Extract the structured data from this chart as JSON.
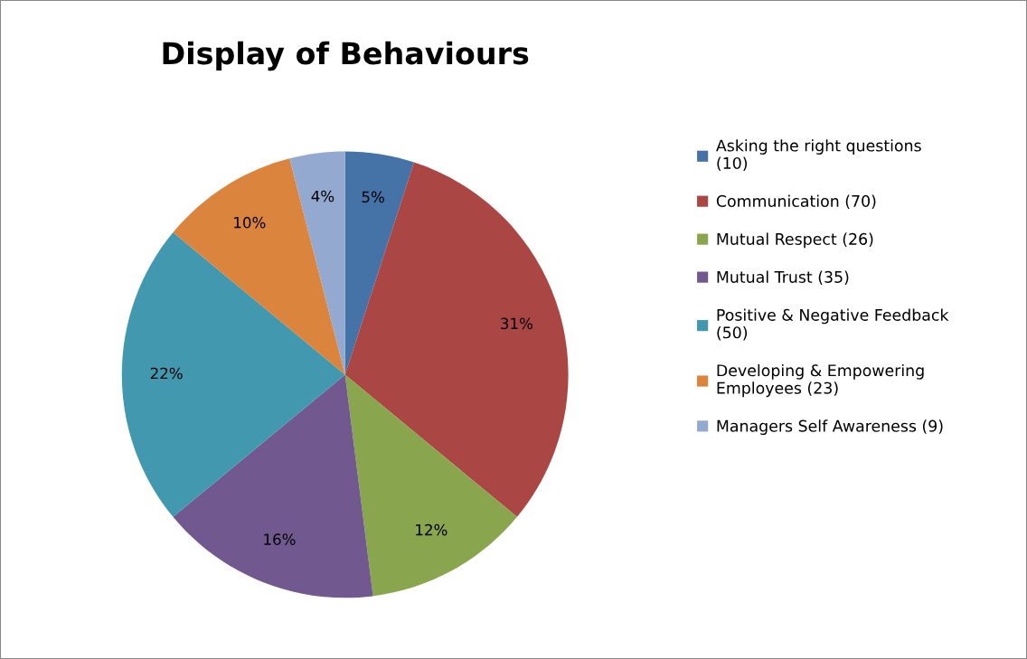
{
  "chart_data": {
    "type": "pie",
    "title": "Display of Behaviours",
    "categories": [
      "Asking the right questions (10)",
      "Communication (70)",
      "Mutual Respect (26)",
      "Mutual Trust (35)",
      "Positive & Negative Feedback (50)",
      "Developing & Empowering Employees (23)",
      "Managers Self Awareness (9)"
    ],
    "values": [
      5,
      31,
      12,
      16,
      22,
      10,
      4
    ],
    "value_labels": [
      "5%",
      "31%",
      "12%",
      "16%",
      "22%",
      "10%",
      "4%"
    ],
    "colors": [
      "#4572a7",
      "#aa4643",
      "#89a54e",
      "#71588f",
      "#4198af",
      "#db843d",
      "#93a9cf"
    ],
    "legend": "right"
  }
}
